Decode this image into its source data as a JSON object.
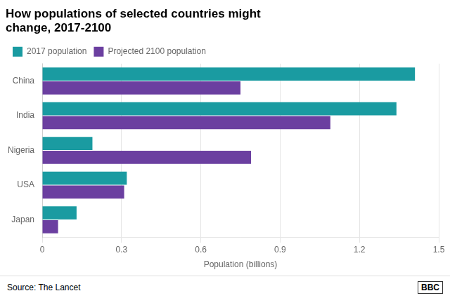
{
  "chart_data": {
    "type": "bar",
    "orientation": "horizontal",
    "title": "How populations of selected countries might\nchange, 2017-2100",
    "categories": [
      "China",
      "India",
      "Nigeria",
      "USA",
      "Japan"
    ],
    "series": [
      {
        "name": "2017 population",
        "color": "#1a9ba1",
        "values": [
          1.41,
          1.34,
          0.19,
          0.32,
          0.13
        ]
      },
      {
        "name": "Projected 2100 population",
        "color": "#6b3fa0",
        "values": [
          0.75,
          1.09,
          0.79,
          0.31,
          0.06
        ]
      }
    ],
    "xlabel": "Population (billions)",
    "xlim": [
      0,
      1.5
    ],
    "xticks": [
      0,
      0.3,
      0.6,
      0.9,
      1.2,
      1.5
    ],
    "grid": true,
    "legend": "top",
    "annotations": [
      "Source: The Lancet",
      "BBC"
    ]
  }
}
